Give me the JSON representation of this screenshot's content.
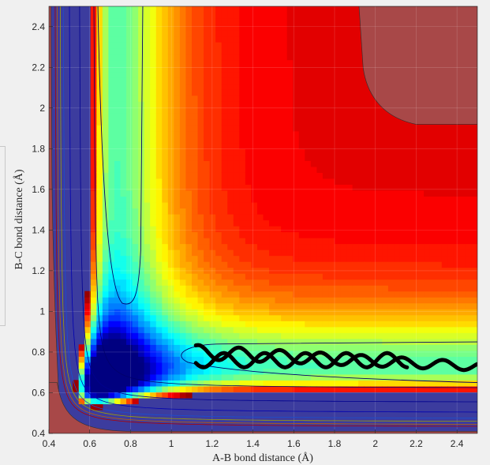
{
  "chart_data": {
    "type": "contour",
    "xlabel": "A-B bond distance (Å)",
    "ylabel": "B-C bond distance (Å)",
    "xlim": [
      0.4,
      2.5
    ],
    "ylim": [
      0.4,
      2.5
    ],
    "x_ticks": [
      "0.4",
      "0.6",
      "0.8",
      "1",
      "1.2",
      "1.4",
      "1.6",
      "1.8",
      "2",
      "2.2",
      "2.4"
    ],
    "y_ticks": [
      "0.4",
      "0.6",
      "0.8",
      "1",
      "1.2",
      "1.4",
      "1.6",
      "1.8",
      "2",
      "2.2",
      "2.4"
    ],
    "grid": true,
    "colormap": "jet",
    "saddle_point": [
      0.84,
      1.04
    ],
    "trajectory": {
      "color": "#000000",
      "start": [
        1.12,
        0.8
      ],
      "end": [
        2.5,
        0.73
      ],
      "mean_y": 0.76,
      "amplitude_y": 0.035,
      "oscillation_period_x": 0.2
    }
  },
  "colors": {
    "background": "#f0f0f0",
    "plateau": "#a84848",
    "valley": "#3c3c9e"
  }
}
